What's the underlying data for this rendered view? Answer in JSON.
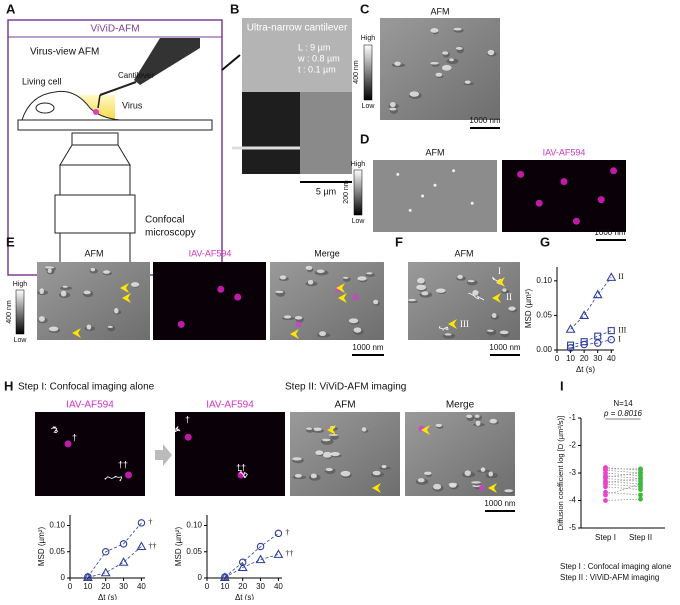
{
  "panels": {
    "A": {
      "label": "A",
      "title": "ViViD-AFM",
      "subtitle": "Virus-view AFM",
      "cantilever": "Cantilever",
      "cell": "Living cell",
      "virus": "Virus",
      "microscope": [
        "Confocal",
        "microscopy"
      ]
    },
    "B": {
      "label": "B",
      "title": "Ultra-narrow cantilever",
      "specs": [
        "L : 9 µm",
        "w : 0.8 µm",
        "t : 0.1 µm"
      ],
      "scale": "5 µm"
    },
    "C": {
      "label": "C",
      "image": "AFM",
      "colorbar": {
        "high": "High",
        "low": "Low",
        "range": "400 nm"
      },
      "scale": "1000 nm"
    },
    "D": {
      "label": "D",
      "images": [
        "AFM",
        "IAV-AF594"
      ],
      "colorbar": {
        "high": "High",
        "low": "Low",
        "range": "200 nm"
      },
      "scale": "1000 nm"
    },
    "E": {
      "label": "E",
      "images": [
        "AFM",
        "IAV-AF594",
        "Merge"
      ],
      "colorbar": {
        "high": "High",
        "low": "Low",
        "range": "400 nm"
      },
      "scale": "1000 nm"
    },
    "F": {
      "label": "F",
      "image": "AFM",
      "tracks": [
        "I",
        "II",
        "III"
      ],
      "scale": "1000 nm"
    },
    "G": {
      "label": "G"
    },
    "H": {
      "label": "H",
      "step1": "Step I: Confocal imaging alone",
      "step2": "Step II: ViViD-AFM imaging",
      "step1_images": [
        "IAV-AF594"
      ],
      "step2_images": [
        "IAV-AF594",
        "AFM",
        "Merge"
      ],
      "step1_tracks": [
        "†",
        "††"
      ],
      "step2_tracks": [
        "†",
        "††"
      ],
      "scale": "1000 nm"
    },
    "I": {
      "label": "I",
      "legend": [
        "Step I : Confocal imaging alone",
        "Step II : ViViD-AFM imaging"
      ]
    }
  },
  "chart_data": [
    {
      "type": "scatter",
      "xlabel": "Δt (s)",
      "ylabel": "MSD (µm²)",
      "x": [
        10,
        20,
        30,
        40
      ],
      "xlim": [
        0,
        42
      ],
      "xticks": [
        0,
        10,
        20,
        30,
        40
      ],
      "ylim": [
        0,
        0.12
      ],
      "yticks": [
        {
          "value": 0,
          "label": "0.00"
        },
        0.05,
        {
          "value": 0.1,
          "label": "0.10"
        }
      ],
      "color": "#2f3f9f",
      "series": [
        {
          "name": "II",
          "marker": "triangle",
          "values": [
            0.03,
            0.05,
            0.08,
            0.105
          ]
        },
        {
          "name": "III",
          "marker": "square",
          "values": [
            0.007,
            0.012,
            0.02,
            0.028
          ]
        },
        {
          "name": "I",
          "marker": "circle",
          "values": [
            0.003,
            0.008,
            0.01,
            0.015
          ]
        }
      ]
    },
    {
      "type": "scatter",
      "xlabel": "Δt (s)",
      "ylabel": "MSD (µm²)",
      "x": [
        10,
        20,
        30,
        40
      ],
      "xlim": [
        0,
        42
      ],
      "xticks": [
        0,
        10,
        20,
        30,
        40
      ],
      "ylim": [
        0,
        0.12
      ],
      "yticks": [
        0,
        0.05,
        {
          "value": 0.1,
          "label": "0.10"
        }
      ],
      "color": "#2f3f9f",
      "series": [
        {
          "name": "†",
          "marker": "circle",
          "values": [
            0.002,
            0.05,
            0.065,
            0.105
          ]
        },
        {
          "name": "††",
          "marker": "triangle",
          "values": [
            0.001,
            0.01,
            0.03,
            0.06
          ]
        }
      ]
    },
    {
      "type": "scatter",
      "xlabel": "Δt (s)",
      "ylabel": "MSD (µm²)",
      "x": [
        10,
        20,
        30,
        40
      ],
      "xlim": [
        0,
        42
      ],
      "xticks": [
        0,
        10,
        20,
        30,
        40
      ],
      "ylim": [
        0,
        0.12
      ],
      "yticks": [
        0,
        0.05,
        {
          "value": 0.1,
          "label": "0.10"
        }
      ],
      "color": "#2f3f9f",
      "series": [
        {
          "name": "†",
          "marker": "circle",
          "values": [
            0.002,
            0.03,
            0.06,
            0.085
          ]
        },
        {
          "name": "††",
          "marker": "triangle",
          "values": [
            0.001,
            0.02,
            0.035,
            0.045
          ]
        }
      ]
    },
    {
      "type": "paired",
      "ylabel": "Diffusion coefficient log [D (µm²/s)]",
      "categories": [
        "Step I",
        "Step II"
      ],
      "annotations": [
        "N=14",
        "p = 0.8016"
      ],
      "ylim": [
        -5,
        -1
      ],
      "yticks": [
        -5,
        -4,
        -3,
        -2,
        -1
      ],
      "colors": [
        "#e645c8",
        "#3cb83c"
      ],
      "values": [
        [
          -2.8,
          -2.85,
          -2.9,
          -3.0,
          -3.1,
          -3.15,
          -3.2,
          -3.3,
          -3.35,
          -3.4,
          -3.5,
          -3.7,
          -3.8,
          -4.0
        ],
        [
          -2.9,
          -2.85,
          -3.0,
          -3.1,
          -3.2,
          -3.0,
          -3.3,
          -3.4,
          -3.2,
          -3.5,
          -3.6,
          -3.8,
          -3.4,
          -3.95
        ]
      ]
    }
  ]
}
